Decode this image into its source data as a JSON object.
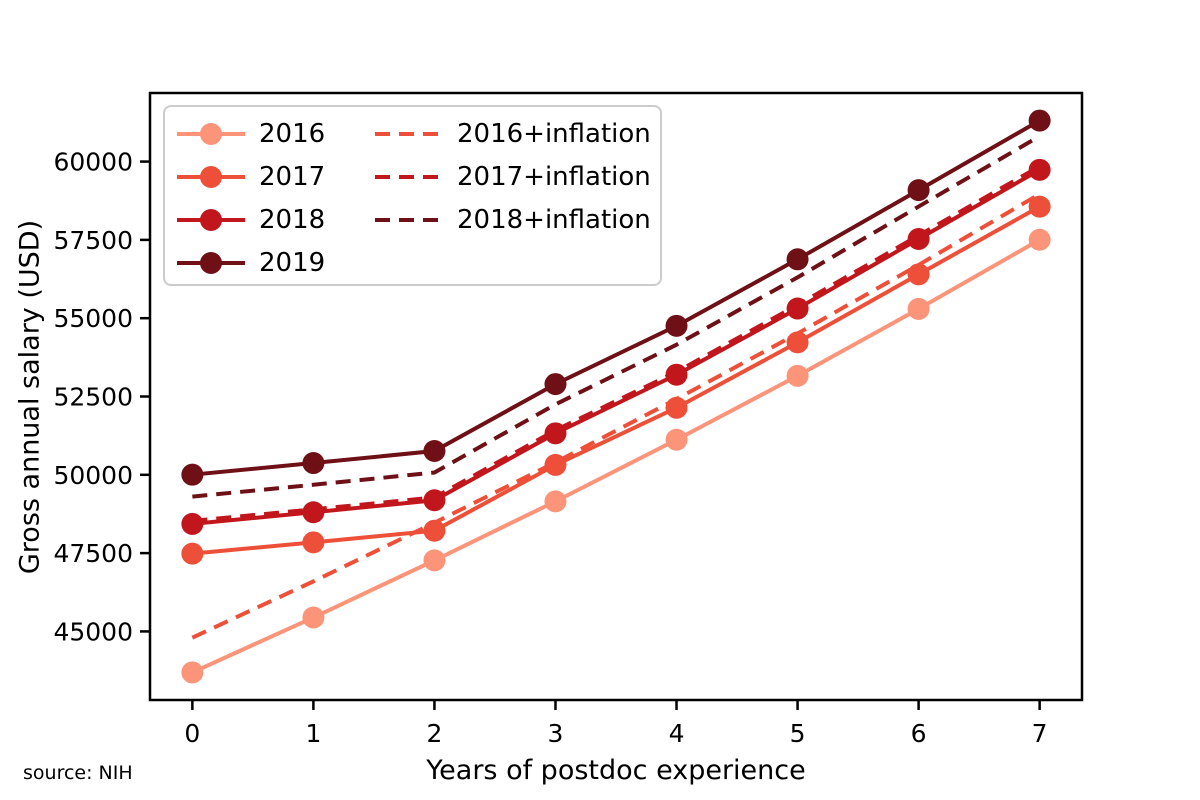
{
  "figure": {
    "source_note": "source: NIH"
  },
  "chart_data": {
    "type": "line",
    "title": "",
    "xlabel": "Years of postdoc experience",
    "ylabel": "Gross annual salary (USD)",
    "x": [
      0,
      1,
      2,
      3,
      4,
      5,
      6,
      7
    ],
    "xticks": [
      0,
      1,
      2,
      3,
      4,
      5,
      6,
      7
    ],
    "yticks": [
      45000,
      47500,
      50000,
      52500,
      55000,
      57500,
      60000
    ],
    "xlim": [
      -0.35,
      7.35
    ],
    "ylim": [
      42811,
      62189
    ],
    "grid": false,
    "legend_position": "upper left",
    "series": [
      {
        "name": "2016",
        "style": "solid",
        "marker": true,
        "color": "#fb9478",
        "values": [
          43692,
          45444,
          47268,
          49152,
          51120,
          53160,
          55296,
          57504
        ]
      },
      {
        "name": "2017",
        "style": "solid",
        "marker": true,
        "color": "#ee4f38",
        "values": [
          47484,
          47844,
          48216,
          50316,
          52140,
          54228,
          56400,
          58560
        ]
      },
      {
        "name": "2018",
        "style": "solid",
        "marker": true,
        "color": "#c2161d",
        "values": [
          48432,
          48804,
          49188,
          51324,
          53196,
          55308,
          57528,
          59736
        ]
      },
      {
        "name": "2019",
        "style": "solid",
        "marker": true,
        "color": "#6e1016",
        "values": [
          50004,
          50376,
          50760,
          52896,
          54756,
          56880,
          59088,
          61308
        ]
      },
      {
        "name": "2016+inflation",
        "style": "dashed",
        "marker": false,
        "color": "#ee4f38",
        "values": [
          44802,
          46598,
          48469,
          50400,
          52418,
          54510,
          56700,
          58965
        ]
      },
      {
        "name": "2017+inflation",
        "style": "dashed",
        "marker": false,
        "color": "#c2161d",
        "values": [
          48529,
          48897,
          49277,
          51423,
          53287,
          55421,
          57641,
          59848
        ]
      },
      {
        "name": "2018+inflation",
        "style": "dashed",
        "marker": false,
        "color": "#6e1016",
        "values": [
          49304,
          49682,
          50073,
          52248,
          54153,
          56304,
          58564,
          60811
        ]
      }
    ]
  }
}
